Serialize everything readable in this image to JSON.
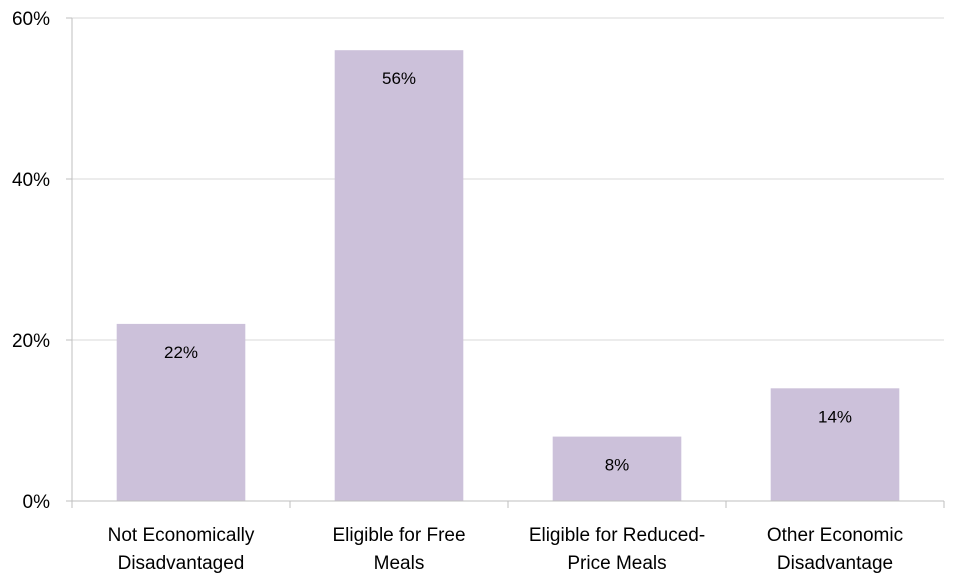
{
  "chart_data": {
    "type": "bar",
    "categories": [
      [
        "Not Economically",
        "Disadvantaged"
      ],
      [
        "Eligible for Free",
        "Meals"
      ],
      [
        "Eligible for Reduced-",
        "Price Meals"
      ],
      [
        "Other Economic",
        "Disadvantage"
      ]
    ],
    "values": [
      22,
      56,
      8,
      14
    ],
    "data_labels": [
      "22%",
      "56%",
      "8%",
      "14%"
    ],
    "y_ticks": [
      0,
      20,
      40,
      60
    ],
    "y_tick_labels": [
      "0%",
      "20%",
      "40%",
      "60%"
    ],
    "ylim": [
      0,
      60
    ],
    "grid": true,
    "legend": "none",
    "bar_color": "#ccc1da",
    "grid_color": "#d9d9d9",
    "axis_color": "#bfbfbf"
  }
}
